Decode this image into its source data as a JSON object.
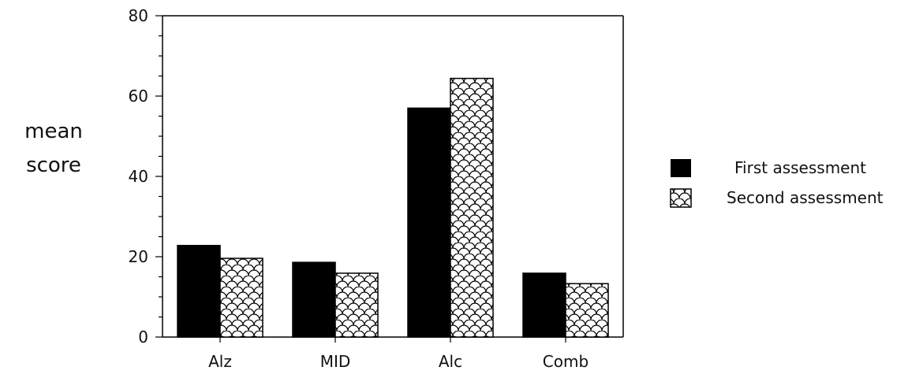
{
  "chart_data": {
    "type": "bar",
    "title": "",
    "xlabel": "",
    "ylabel_lines": [
      "mean",
      "score"
    ],
    "categories": [
      "Alz",
      "MID",
      "Alc",
      "Comb"
    ],
    "series": [
      {
        "name": "First assessment",
        "values": [
          22.8,
          18.6,
          57.0,
          15.9
        ],
        "fill": "solid-black"
      },
      {
        "name": "Second assessment",
        "values": [
          19.6,
          15.9,
          64.4,
          13.3
        ],
        "fill": "scale-pattern"
      }
    ],
    "ylim": [
      0,
      80
    ],
    "yticks": [
      0,
      20,
      40,
      60,
      80
    ],
    "y_minor_step": 5,
    "grid": false,
    "legend_position": "right",
    "colors": {
      "first": "#000000",
      "second_pattern_bg": "#ffffff",
      "axis": "#000000"
    }
  }
}
